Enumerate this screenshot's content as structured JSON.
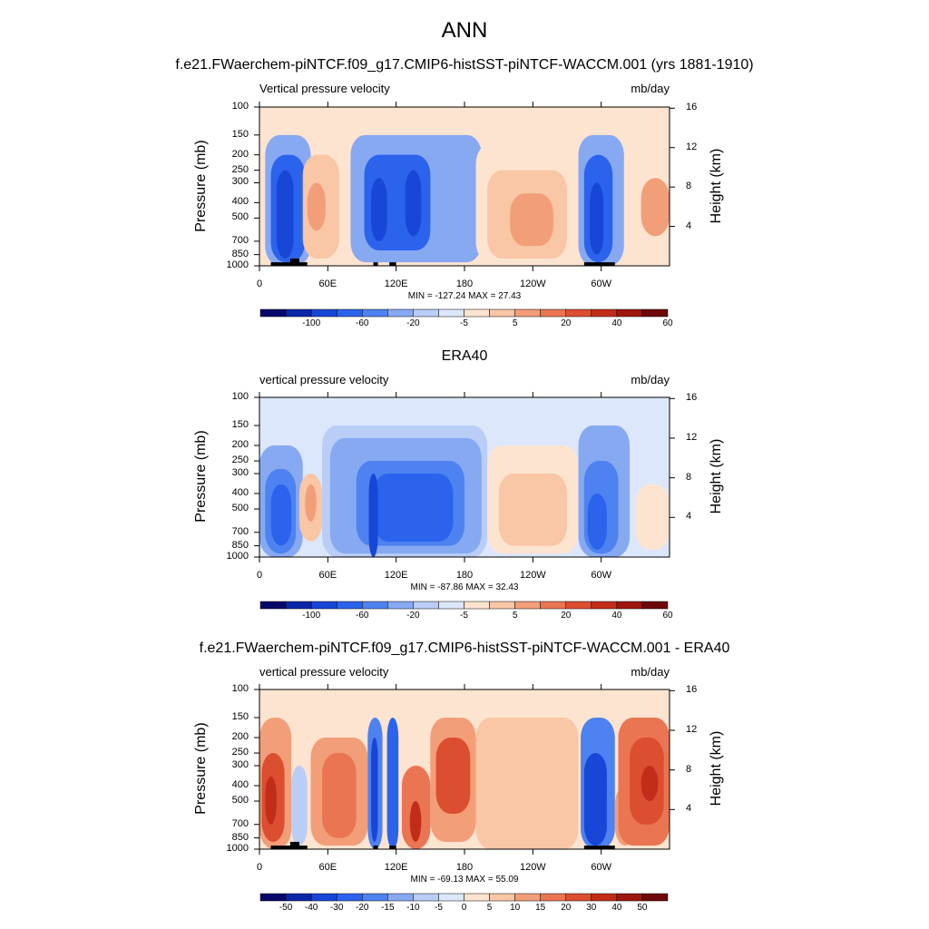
{
  "page": {
    "title": "ANN"
  },
  "colors": {
    "levels": [
      "#08086b",
      "#0b27a8",
      "#1846d6",
      "#2b63ec",
      "#4d82f0",
      "#86a9f2",
      "#b9cdf7",
      "#dce7fb",
      "#fde4d0",
      "#f9c6a6",
      "#f29e78",
      "#ea7553",
      "#dc4e30",
      "#c22d19",
      "#9e160e",
      "#6e0707"
    ]
  },
  "chart_data": [
    {
      "type": "heatmap",
      "title": "f.e21.FWaerchem-piNTCF.f09_g17.CMIP6-histSST-piNTCF-WACCM.001 (yrs 1881-1910)",
      "left_string": "Vertical pressure velocity",
      "right_string": "mb/day",
      "ylabel": "Pressure (mb)",
      "y2label": "Height (km)",
      "x_ticks": [
        "0",
        "60E",
        "120E",
        "180",
        "120W",
        "60W"
      ],
      "y_ticks": [
        "100",
        "150",
        "200",
        "250",
        "300",
        "400",
        "500",
        "700",
        "850",
        "1000"
      ],
      "height_ticks": [
        "16",
        "12",
        "8",
        "4"
      ],
      "xlim": [
        0,
        360
      ],
      "ylim": [
        1000,
        100
      ],
      "min_max": "MIN = -127.24  MAX =  27.43",
      "colorbar_labels": [
        "-100",
        "-60",
        "-20",
        "-5",
        "5",
        "20",
        "40",
        "60"
      ],
      "regions": [
        {
          "lon": [
            5,
            45
          ],
          "p": [
            150,
            1000
          ],
          "level": 5
        },
        {
          "lon": [
            10,
            40
          ],
          "p": [
            200,
            950
          ],
          "level": 3
        },
        {
          "lon": [
            15,
            30
          ],
          "p": [
            250,
            900
          ],
          "level": 2
        },
        {
          "lon": [
            38,
            70
          ],
          "p": [
            200,
            900
          ],
          "level": 9
        },
        {
          "lon": [
            42,
            58
          ],
          "p": [
            300,
            600
          ],
          "level": 10
        },
        {
          "lon": [
            80,
            195
          ],
          "p": [
            150,
            950
          ],
          "level": 5
        },
        {
          "lon": [
            92,
            150
          ],
          "p": [
            200,
            800
          ],
          "level": 3
        },
        {
          "lon": [
            98,
            112
          ],
          "p": [
            280,
            700
          ],
          "level": 2
        },
        {
          "lon": [
            128,
            142
          ],
          "p": [
            250,
            650
          ],
          "level": 2
        },
        {
          "lon": [
            190,
            280
          ],
          "p": [
            170,
            950
          ],
          "level": 8
        },
        {
          "lon": [
            200,
            270
          ],
          "p": [
            250,
            900
          ],
          "level": 9
        },
        {
          "lon": [
            220,
            258
          ],
          "p": [
            350,
            750
          ],
          "level": 10
        },
        {
          "lon": [
            280,
            320
          ],
          "p": [
            150,
            1000
          ],
          "level": 5
        },
        {
          "lon": [
            285,
            310
          ],
          "p": [
            200,
            950
          ],
          "level": 3
        },
        {
          "lon": [
            290,
            302
          ],
          "p": [
            300,
            850
          ],
          "level": 2
        },
        {
          "lon": [
            325,
            360
          ],
          "p": [
            200,
            900
          ],
          "level": 8
        },
        {
          "lon": [
            335,
            360
          ],
          "p": [
            280,
            650
          ],
          "level": 10
        }
      ],
      "topography": [
        {
          "lon": [
            10,
            42
          ],
          "p": 950
        },
        {
          "lon": [
            27,
            35
          ],
          "p": 900
        },
        {
          "lon": [
            100,
            104
          ],
          "p": 950
        },
        {
          "lon": [
            114,
            120
          ],
          "p": 950
        },
        {
          "lon": [
            285,
            312
          ],
          "p": 950
        }
      ]
    },
    {
      "type": "heatmap",
      "title": "ERA40",
      "left_string": "vertical pressure velocity",
      "right_string": "mb/day",
      "ylabel": "Pressure (mb)",
      "y2label": "Height (km)",
      "x_ticks": [
        "0",
        "60E",
        "120E",
        "180",
        "120W",
        "60W"
      ],
      "y_ticks": [
        "100",
        "150",
        "200",
        "250",
        "300",
        "400",
        "500",
        "700",
        "850",
        "1000"
      ],
      "height_ticks": [
        "16",
        "12",
        "8",
        "4"
      ],
      "xlim": [
        0,
        360
      ],
      "ylim": [
        1000,
        100
      ],
      "min_max": "MIN = -87.86  MAX =  32.43",
      "colorbar_labels": [
        "-100",
        "-60",
        "-20",
        "-5",
        "5",
        "20",
        "40",
        "60"
      ],
      "regions": [
        {
          "lon": [
            0,
            38
          ],
          "p": [
            200,
            1000
          ],
          "level": 5
        },
        {
          "lon": [
            5,
            32
          ],
          "p": [
            280,
            950
          ],
          "level": 4
        },
        {
          "lon": [
            10,
            28
          ],
          "p": [
            350,
            850
          ],
          "level": 3
        },
        {
          "lon": [
            35,
            55
          ],
          "p": [
            300,
            800
          ],
          "level": 9
        },
        {
          "lon": [
            40,
            50
          ],
          "p": [
            350,
            600
          ],
          "level": 10
        },
        {
          "lon": [
            55,
            200
          ],
          "p": [
            150,
            1000
          ],
          "level": 6
        },
        {
          "lon": [
            62,
            195
          ],
          "p": [
            180,
            950
          ],
          "level": 5
        },
        {
          "lon": [
            85,
            180
          ],
          "p": [
            250,
            850
          ],
          "level": 4
        },
        {
          "lon": [
            100,
            170
          ],
          "p": [
            300,
            800
          ],
          "level": 3
        },
        {
          "lon": [
            96,
            104
          ],
          "p": [
            300,
            1000
          ],
          "level": 2
        },
        {
          "lon": [
            200,
            280
          ],
          "p": [
            200,
            950
          ],
          "level": 8
        },
        {
          "lon": [
            210,
            270
          ],
          "p": [
            300,
            850
          ],
          "level": 9
        },
        {
          "lon": [
            280,
            325
          ],
          "p": [
            150,
            1000
          ],
          "level": 5
        },
        {
          "lon": [
            285,
            315
          ],
          "p": [
            250,
            950
          ],
          "level": 4
        },
        {
          "lon": [
            288,
            305
          ],
          "p": [
            400,
            900
          ],
          "level": 3
        },
        {
          "lon": [
            330,
            360
          ],
          "p": [
            350,
            900
          ],
          "level": 8
        }
      ],
      "topography": []
    },
    {
      "type": "heatmap",
      "title": "f.e21.FWaerchem-piNTCF.f09_g17.CMIP6-histSST-piNTCF-WACCM.001 - ERA40",
      "left_string": "vertical pressure velocity",
      "right_string": "mb/day",
      "ylabel": "Pressure (mb)",
      "y2label": "Height (km)",
      "x_ticks": [
        "0",
        "60E",
        "120E",
        "180",
        "120W",
        "60W"
      ],
      "y_ticks": [
        "100",
        "150",
        "200",
        "250",
        "300",
        "400",
        "500",
        "700",
        "850",
        "1000"
      ],
      "height_ticks": [
        "16",
        "12",
        "8",
        "4"
      ],
      "xlim": [
        0,
        360
      ],
      "ylim": [
        1000,
        100
      ],
      "min_max": "MIN = -69.13  MAX =  55.09",
      "colorbar_labels": [
        "-50",
        "-40",
        "-30",
        "-20",
        "-15",
        "-10",
        "-5",
        "0",
        "5",
        "10",
        "15",
        "20",
        "30",
        "40",
        "50"
      ],
      "regions": [
        {
          "lon": [
            0,
            28
          ],
          "p": [
            150,
            1000
          ],
          "level": 10
        },
        {
          "lon": [
            2,
            22
          ],
          "p": [
            250,
            900
          ],
          "level": 12
        },
        {
          "lon": [
            5,
            15
          ],
          "p": [
            350,
            700
          ],
          "level": 13
        },
        {
          "lon": [
            28,
            42
          ],
          "p": [
            300,
            950
          ],
          "level": 6
        },
        {
          "lon": [
            45,
            95
          ],
          "p": [
            200,
            950
          ],
          "level": 10
        },
        {
          "lon": [
            55,
            85
          ],
          "p": [
            250,
            850
          ],
          "level": 11
        },
        {
          "lon": [
            95,
            108
          ],
          "p": [
            150,
            1000
          ],
          "level": 4
        },
        {
          "lon": [
            98,
            104
          ],
          "p": [
            200,
            900
          ],
          "level": 2
        },
        {
          "lon": [
            112,
            122
          ],
          "p": [
            150,
            1000
          ],
          "level": 3
        },
        {
          "lon": [
            125,
            150
          ],
          "p": [
            300,
            1000
          ],
          "level": 11
        },
        {
          "lon": [
            132,
            142
          ],
          "p": [
            500,
            900
          ],
          "level": 13
        },
        {
          "lon": [
            150,
            190
          ],
          "p": [
            150,
            900
          ],
          "level": 10
        },
        {
          "lon": [
            155,
            185
          ],
          "p": [
            200,
            600
          ],
          "level": 12
        },
        {
          "lon": [
            190,
            280
          ],
          "p": [
            150,
            1000
          ],
          "level": 9
        },
        {
          "lon": [
            282,
            312
          ],
          "p": [
            150,
            1000
          ],
          "level": 4
        },
        {
          "lon": [
            285,
            305
          ],
          "p": [
            250,
            950
          ],
          "level": 2
        },
        {
          "lon": [
            312,
            330
          ],
          "p": [
            400,
            950
          ],
          "level": 10
        },
        {
          "lon": [
            315,
            360
          ],
          "p": [
            150,
            950
          ],
          "level": 11
        },
        {
          "lon": [
            325,
            355
          ],
          "p": [
            200,
            700
          ],
          "level": 12
        },
        {
          "lon": [
            335,
            350
          ],
          "p": [
            300,
            500
          ],
          "level": 13
        }
      ],
      "topography": [
        {
          "lon": [
            10,
            42
          ],
          "p": 950
        },
        {
          "lon": [
            27,
            35
          ],
          "p": 900
        },
        {
          "lon": [
            100,
            104
          ],
          "p": 950
        },
        {
          "lon": [
            114,
            120
          ],
          "p": 950
        },
        {
          "lon": [
            285,
            312
          ],
          "p": 950
        }
      ]
    }
  ]
}
